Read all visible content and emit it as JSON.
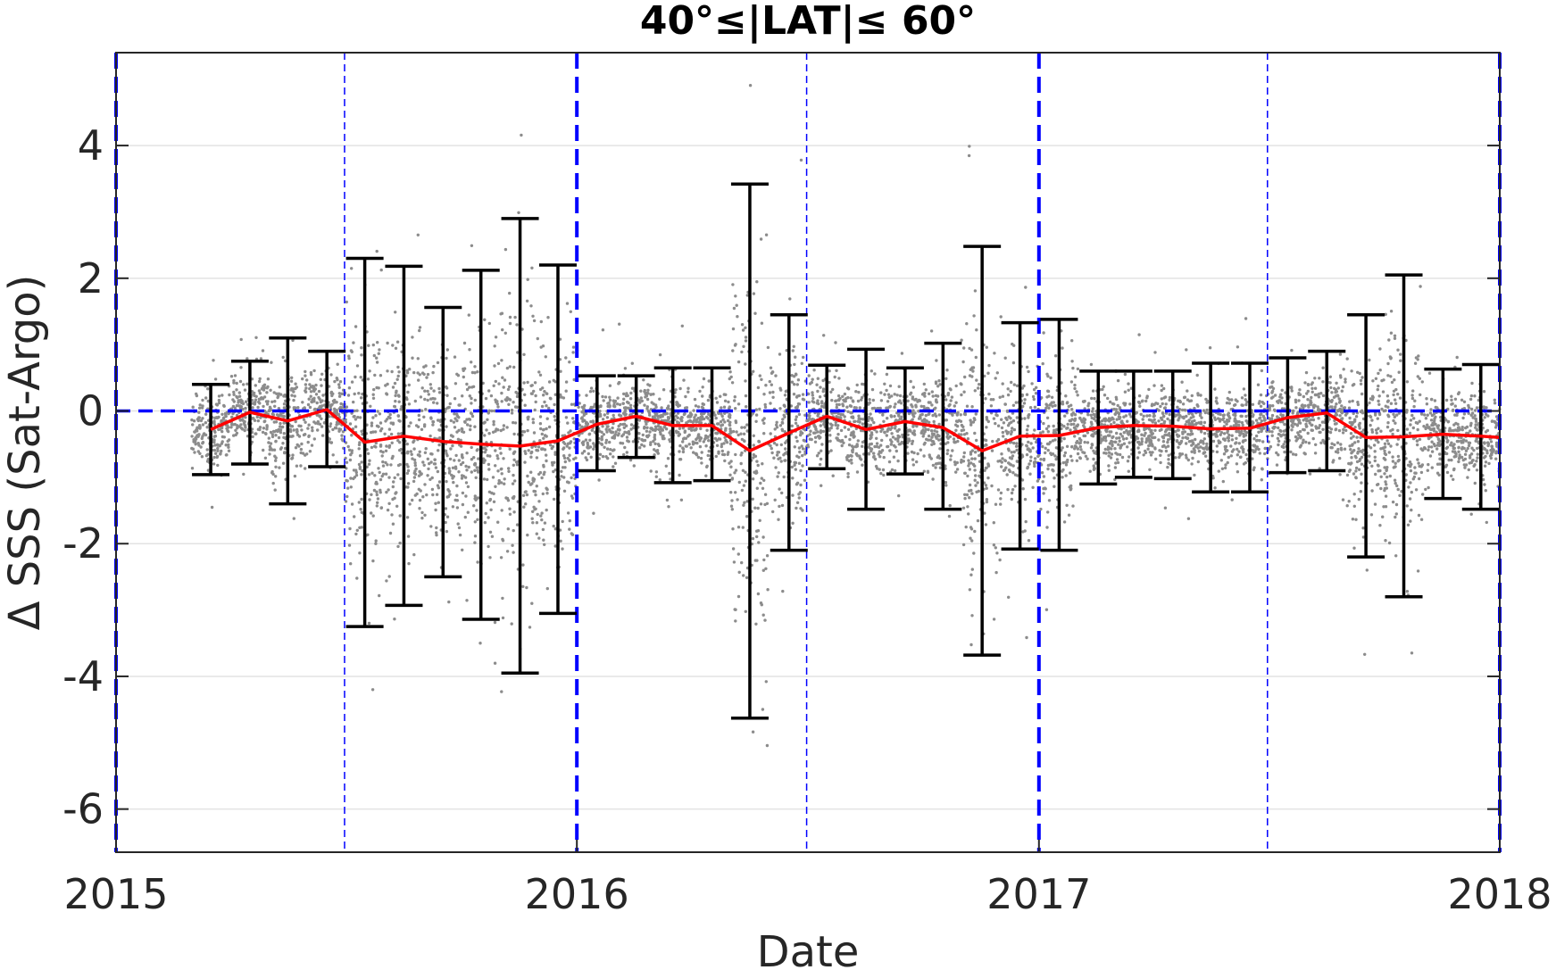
{
  "chart_data": {
    "type": "scatter",
    "title": "40°≤|LAT|≤ 60°",
    "xlabel": "Date",
    "ylabel": "Δ SSS (Sat-Argo)",
    "xlim": [
      "2015-01-01",
      "2018-01-01"
    ],
    "ylim": [
      -6.65,
      5.4
    ],
    "x_ticks": [
      "2015",
      "2016",
      "2017",
      "2018"
    ],
    "y_ticks": [
      4,
      2,
      0,
      -2,
      -4,
      -6
    ],
    "grid": true,
    "colors": {
      "scatter": "#8c8c8c",
      "mean_line": "#ff0000",
      "error_bars": "#000000",
      "reference_lines": "#0000ff"
    },
    "reference_lines": {
      "zero_line_y": 0,
      "year_boundaries": [
        "2015-01-01",
        "2016-01-01",
        "2017-01-01",
        "2018-01-01"
      ],
      "half_year_boundaries": [
        "2015-07-01",
        "2016-07-01",
        "2017-07-01"
      ]
    },
    "series": [
      {
        "kind": "mean_with_errorbars",
        "x": [
          "2015-03-17",
          "2015-04-17",
          "2015-05-17",
          "2015-06-17",
          "2015-07-17",
          "2015-08-17",
          "2015-09-17",
          "2015-10-17",
          "2015-11-17",
          "2015-12-17",
          "2016-01-17",
          "2016-02-17",
          "2016-03-17",
          "2016-04-17",
          "2016-05-17",
          "2016-06-17",
          "2016-07-17",
          "2016-08-17",
          "2016-09-17",
          "2016-10-17",
          "2016-11-17",
          "2016-12-17",
          "2017-01-17",
          "2017-02-17",
          "2017-03-17",
          "2017-04-17",
          "2017-05-17",
          "2017-06-17",
          "2017-07-17",
          "2017-08-17",
          "2017-09-17",
          "2017-10-17",
          "2017-11-17",
          "2017-12-17"
        ],
        "y": [
          -0.28,
          -0.02,
          -0.15,
          0.02,
          -0.47,
          -0.38,
          -0.46,
          -0.5,
          -0.53,
          -0.45,
          -0.2,
          -0.08,
          -0.22,
          -0.22,
          -0.6,
          -0.33,
          -0.08,
          -0.28,
          -0.16,
          -0.25,
          -0.6,
          -0.38,
          -0.37,
          -0.25,
          -0.22,
          -0.23,
          -0.27,
          -0.26,
          -0.1,
          -0.03,
          -0.4,
          -0.39,
          -0.35,
          -0.38
        ],
        "upper": [
          0.4,
          0.75,
          1.1,
          0.9,
          2.3,
          2.18,
          1.56,
          2.12,
          2.9,
          2.2,
          0.53,
          0.53,
          0.65,
          0.65,
          3.42,
          1.45,
          0.69,
          0.93,
          0.65,
          1.02,
          2.48,
          1.33,
          1.38,
          0.6,
          0.6,
          0.6,
          0.72,
          0.72,
          0.8,
          0.9,
          1.45,
          2.05,
          0.63,
          0.7
        ],
        "lower": [
          -0.96,
          -0.8,
          -1.4,
          -0.84,
          -3.25,
          -2.93,
          -2.5,
          -3.14,
          -3.95,
          -3.05,
          -0.9,
          -0.7,
          -1.08,
          -1.05,
          -4.63,
          -2.1,
          -0.87,
          -1.48,
          -0.95,
          -1.48,
          -3.68,
          -2.08,
          -2.1,
          -1.1,
          -1.0,
          -1.02,
          -1.22,
          -1.22,
          -0.93,
          -0.9,
          -2.2,
          -2.8,
          -1.32,
          -1.48
        ]
      }
    ],
    "scatter_points_note": ""
  }
}
